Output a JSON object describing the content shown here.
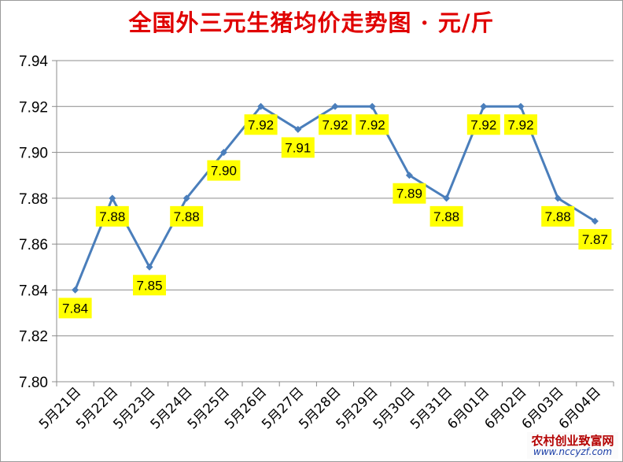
{
  "chart_data": {
    "type": "line",
    "title": "全国外三元生猪均价走势图 · 元/斤",
    "categories": [
      "5月21日",
      "5月22日",
      "5月23日",
      "5月24日",
      "5月25日",
      "5月26日",
      "5月27日",
      "5月28日",
      "5月29日",
      "5月30日",
      "5月31日",
      "6月01日",
      "6月02日",
      "6月03日",
      "6月04日"
    ],
    "series": [
      {
        "values": [
          7.84,
          7.88,
          7.85,
          7.88,
          7.9,
          7.92,
          7.91,
          7.92,
          7.92,
          7.89,
          7.88,
          7.92,
          7.92,
          7.88,
          7.87
        ]
      }
    ],
    "data_labels": [
      "7.84",
      "7.88",
      "7.85",
      "7.88",
      "7.90",
      "7.92",
      "7.91",
      "7.92",
      "7.92",
      "7.89",
      "7.88",
      "7.92",
      "7.92",
      "7.88",
      "7.87"
    ],
    "yticks": [
      "7.80",
      "7.82",
      "7.84",
      "7.86",
      "7.88",
      "7.90",
      "7.92",
      "7.94"
    ],
    "ylim": [
      7.8,
      7.94
    ],
    "grid": true,
    "legend": "none",
    "xlabel": "",
    "ylabel": "",
    "colors": {
      "line": "#4a7ebb",
      "label_bg": "#ffff00",
      "title": "#e00000"
    }
  },
  "watermark": {
    "name": "农村创业致富网",
    "url": "www.nccyzf.com"
  }
}
